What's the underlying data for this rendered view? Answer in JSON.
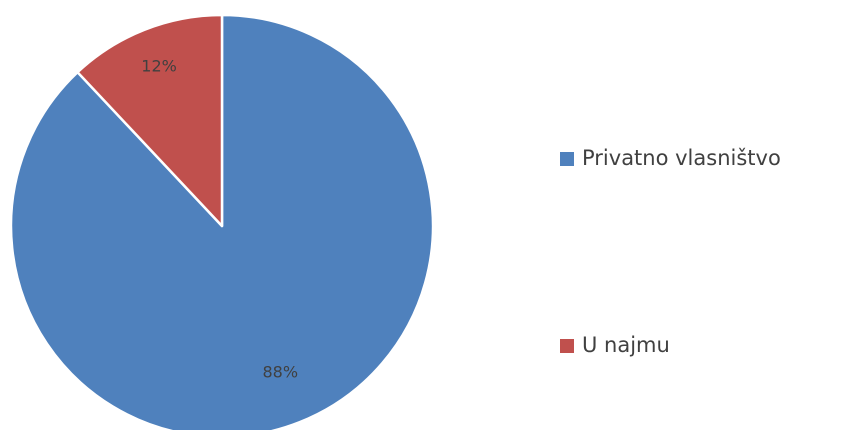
{
  "chart_data": {
    "type": "pie",
    "slices": [
      {
        "label": "Privatno vlasništvo",
        "value": 88,
        "value_label": "88%",
        "color": "#4f81bd"
      },
      {
        "label": "U najmu",
        "value": 12,
        "value_label": "12%",
        "color": "#c0504d"
      }
    ],
    "start_angle": "12 o'clock",
    "direction": "clockwise",
    "legend": "right"
  }
}
